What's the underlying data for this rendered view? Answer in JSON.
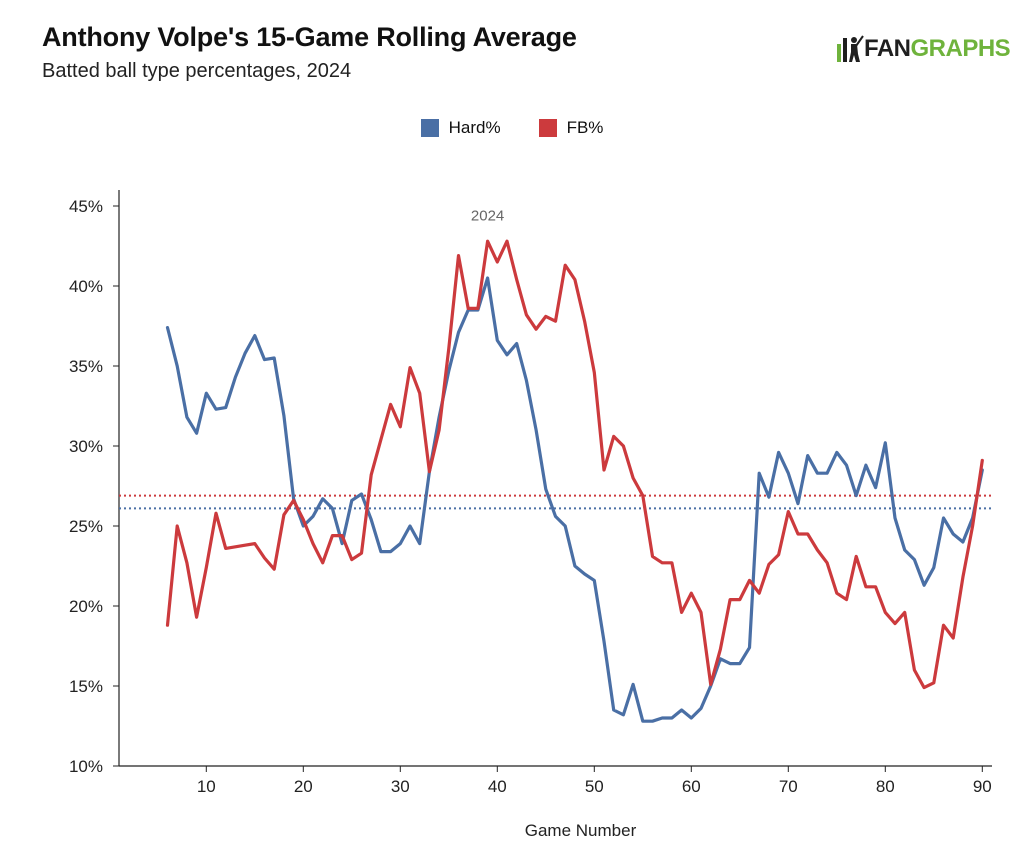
{
  "header": {
    "title": "Anthony Volpe's 15-Game Rolling Average",
    "subtitle": "Batted ball type percentages, 2024",
    "logo_fan": "FAN",
    "logo_graphs": "GRAPHS"
  },
  "colors": {
    "hard": "#4a6fa5",
    "fb": "#cc3a3d",
    "logo_green": "#6fb33c"
  },
  "chart_data": {
    "type": "line",
    "title": "Anthony Volpe's 15-Game Rolling Average",
    "subtitle": "Batted ball type percentages, 2024",
    "xlabel": "Game Number",
    "ylabel": "",
    "annotation": "2024",
    "xlim": [
      1,
      91
    ],
    "ylim": [
      10,
      46
    ],
    "xticks": [
      10,
      20,
      30,
      40,
      50,
      60,
      70,
      80,
      90
    ],
    "yticks": [
      10,
      15,
      20,
      25,
      30,
      35,
      40,
      45
    ],
    "ytick_format": "%",
    "grid": false,
    "legend_position": "top-center",
    "x": [
      6,
      7,
      8,
      9,
      10,
      11,
      12,
      13,
      14,
      15,
      16,
      17,
      18,
      19,
      20,
      21,
      22,
      23,
      24,
      25,
      26,
      27,
      28,
      29,
      30,
      31,
      32,
      33,
      34,
      35,
      36,
      37,
      38,
      39,
      40,
      41,
      42,
      43,
      44,
      45,
      46,
      47,
      48,
      49,
      50,
      51,
      52,
      53,
      54,
      55,
      56,
      57,
      58,
      59,
      60,
      61,
      62,
      63,
      64,
      65,
      66,
      67,
      68,
      69,
      70,
      71,
      72,
      73,
      74,
      75,
      76,
      77,
      78,
      79,
      80,
      81,
      82,
      83,
      84,
      85,
      86,
      87,
      88,
      89,
      90
    ],
    "series": [
      {
        "name": "Hard%",
        "color": "#4a6fa5",
        "values": [
          37.4,
          35.0,
          31.8,
          30.8,
          33.3,
          32.3,
          32.4,
          34.3,
          35.8,
          36.9,
          35.4,
          35.5,
          31.9,
          26.7,
          25.0,
          25.6,
          26.7,
          26.1,
          23.9,
          26.6,
          27.0,
          25.4,
          23.4,
          23.4,
          23.9,
          25.0,
          23.9,
          28.4,
          31.8,
          34.7,
          37.1,
          38.5,
          38.5,
          40.5,
          36.6,
          35.7,
          36.4,
          34.1,
          31.0,
          27.3,
          25.6,
          25.0,
          22.5,
          22.0,
          21.6,
          17.8,
          13.5,
          13.2,
          15.1,
          12.8,
          12.8,
          13.0,
          13.0,
          13.5,
          13.0,
          13.6,
          15.0,
          16.7,
          16.4,
          16.4,
          17.4,
          28.3,
          26.8,
          29.6,
          28.3,
          26.4,
          29.4,
          28.3,
          28.3,
          29.6,
          28.8,
          26.9,
          28.8,
          27.4,
          30.2,
          25.5,
          23.5,
          22.9,
          21.3,
          22.4,
          25.5,
          24.5,
          24.0,
          25.5,
          28.5
        ]
      },
      {
        "name": "FB%",
        "color": "#cc3a3d",
        "values": [
          18.8,
          25.0,
          22.7,
          19.3,
          22.4,
          25.8,
          23.6,
          23.7,
          23.8,
          23.9,
          23.0,
          22.3,
          25.7,
          26.6,
          25.4,
          23.9,
          22.7,
          24.4,
          24.4,
          22.9,
          23.3,
          28.2,
          30.4,
          32.6,
          31.2,
          34.9,
          33.3,
          28.4,
          31.0,
          36.1,
          41.9,
          38.6,
          38.6,
          42.8,
          41.5,
          42.8,
          40.4,
          38.2,
          37.3,
          38.1,
          37.8,
          41.3,
          40.4,
          37.8,
          34.6,
          28.5,
          30.6,
          30.0,
          28.0,
          26.9,
          23.1,
          22.7,
          22.7,
          19.6,
          20.8,
          19.6,
          15.1,
          17.3,
          20.4,
          20.4,
          21.6,
          20.8,
          22.6,
          23.2,
          25.9,
          24.5,
          24.5,
          23.5,
          22.7,
          20.8,
          20.4,
          23.1,
          21.2,
          21.2,
          19.6,
          18.9,
          19.6,
          16.0,
          14.9,
          15.2,
          18.8,
          18.0,
          21.8,
          25.0,
          29.1
        ]
      }
    ],
    "reference_lines": [
      {
        "series": "Hard%",
        "value": 26.1,
        "style": "dotted"
      },
      {
        "series": "FB%",
        "value": 26.9,
        "style": "dotted"
      }
    ]
  }
}
